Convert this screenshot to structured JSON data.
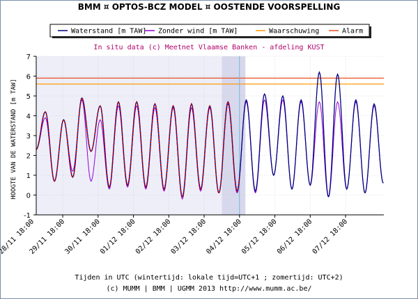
{
  "chart_data": {
    "type": "line",
    "title": "BMM ¤ OPTOS-BCZ MODEL ¤ OOSTENDE VOORSPELLING",
    "subtitle": "In situ data (c) Meetnet Vlaamse Banken - afdeling KUST",
    "ylabel": "HOOGTE VAN DE WATERSTAND [m TAW]",
    "xlabel": "Tijden in UTC (wintertijd: lokale tijd=UTC+1 ; zomertijd: UTC+2)",
    "copyright": "(c) MUMM | BMM | UGMM 2013 http://www.mumm.ac.be/",
    "ylim": [
      -1,
      7
    ],
    "yticks": [
      "-1",
      "0",
      "1",
      "2",
      "3",
      "4",
      "5",
      "6",
      "7"
    ],
    "xticks": [
      "28/11 18:00",
      "29/11 18:00",
      "30/11 18:00",
      "01/12 18:00",
      "02/12 18:00",
      "03/12 18:00",
      "04/12 18:00",
      "05/12 18:00",
      "06/12 18:00",
      "07/12 18:00"
    ],
    "xrange_hours": [
      0,
      236
    ],
    "xticks_hours": [
      -6,
      18,
      42,
      66,
      90,
      114,
      138,
      162,
      186,
      210
    ],
    "grid": true,
    "legend_position": "top",
    "shaded_history_until_hours": 142,
    "shaded_analysis_from_hours": 126,
    "now_line_hours": 138,
    "series": [
      {
        "name": "Waterstand [m TAW]",
        "color": "#000080"
      },
      {
        "name": "Zonder wind [m TAW]",
        "color": "#9400d3"
      },
      {
        "name": "Waarschuwing",
        "color": "#ff9900",
        "value": 5.6
      },
      {
        "name": "Alarm",
        "color": "#e8501e",
        "value": 5.9
      }
    ],
    "observed_name": "In situ data",
    "observed_color": "#cc0000",
    "high_waters": [
      {
        "t": 6.2,
        "wl": 4.2,
        "nw": 3.9
      },
      {
        "t": 18.6,
        "wl": 3.8,
        "nw": 3.8
      },
      {
        "t": 31.0,
        "wl": 4.9,
        "nw": 4.8
      },
      {
        "t": 43.4,
        "wl": 4.5,
        "nw": 3.8
      },
      {
        "t": 55.8,
        "wl": 4.7,
        "nw": 4.5
      },
      {
        "t": 68.2,
        "wl": 4.7,
        "nw": 4.5
      },
      {
        "t": 80.6,
        "wl": 4.6,
        "nw": 4.4
      },
      {
        "t": 93.0,
        "wl": 4.5,
        "nw": 4.4
      },
      {
        "t": 105.4,
        "wl": 4.6,
        "nw": 4.4
      },
      {
        "t": 117.8,
        "wl": 4.5,
        "nw": 4.4
      },
      {
        "t": 130.2,
        "wl": 4.7,
        "nw": 4.6
      },
      {
        "t": 142.6,
        "wl": 4.8,
        "nw": 4.7
      },
      {
        "t": 155.0,
        "wl": 5.1,
        "nw": 4.8
      },
      {
        "t": 167.4,
        "wl": 5.0,
        "nw": 4.8
      },
      {
        "t": 179.8,
        "wl": 4.8,
        "nw": 4.7
      },
      {
        "t": 192.2,
        "wl": 6.2,
        "nw": 4.7
      },
      {
        "t": 204.6,
        "wl": 6.1,
        "nw": 4.7
      },
      {
        "t": 217.0,
        "wl": 4.8,
        "nw": 4.7
      },
      {
        "t": 229.4,
        "wl": 4.6,
        "nw": 4.5
      }
    ],
    "low_waters": [
      {
        "t": 0,
        "wl": 2.3,
        "nw": 2.3
      },
      {
        "t": 12.4,
        "wl": 0.7,
        "nw": 0.7
      },
      {
        "t": 24.8,
        "wl": 0.9,
        "nw": 1.2
      },
      {
        "t": 37.2,
        "wl": 2.2,
        "nw": 0.7
      },
      {
        "t": 49.6,
        "wl": 0.4,
        "nw": 0.3
      },
      {
        "t": 62.0,
        "wl": 0.5,
        "nw": 0.4
      },
      {
        "t": 74.4,
        "wl": 0.4,
        "nw": 0.3
      },
      {
        "t": 86.8,
        "wl": 0.3,
        "nw": 0.2
      },
      {
        "t": 99.2,
        "wl": -0.1,
        "nw": -0.2
      },
      {
        "t": 111.6,
        "wl": 0.3,
        "nw": 0.2
      },
      {
        "t": 124.0,
        "wl": 0.1,
        "nw": 0.1
      },
      {
        "t": 136.4,
        "wl": 0.2,
        "nw": 0.1
      },
      {
        "t": 148.8,
        "wl": 0.2,
        "nw": 0.1
      },
      {
        "t": 161.2,
        "wl": 1.0,
        "nw": 1.0
      },
      {
        "t": 173.6,
        "wl": 0.3,
        "nw": 0.3
      },
      {
        "t": 186.0,
        "wl": 0.5,
        "nw": 0.5
      },
      {
        "t": 198.4,
        "wl": -0.1,
        "nw": -0.1
      },
      {
        "t": 210.8,
        "wl": 0.3,
        "nw": 0.3
      },
      {
        "t": 223.2,
        "wl": 0.1,
        "nw": 0.1
      },
      {
        "t": 235.6,
        "wl": 0.6,
        "nw": 0.6
      }
    ]
  }
}
